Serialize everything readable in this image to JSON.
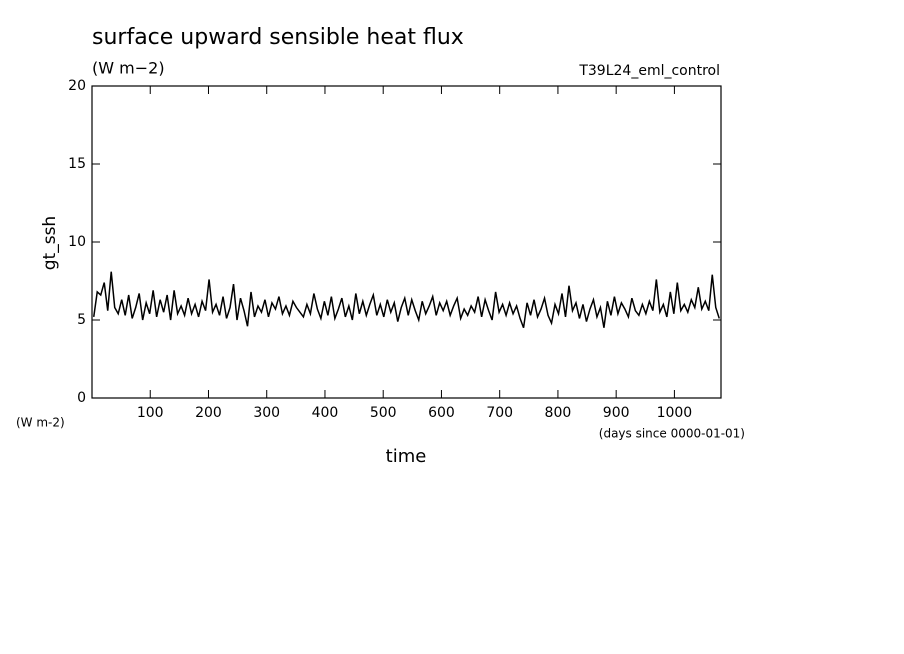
{
  "chart_data": {
    "type": "line",
    "title": "surface upward sensible heat flux",
    "subtitle": "(W m−2)",
    "annotation": "T39L24_eml_control",
    "y_label": "gt_ssh",
    "x_label": "time",
    "y_units": "(W m-2)",
    "x_units": "(days since 0000-01-01)",
    "xlim": [
      0,
      1080
    ],
    "ylim": [
      0,
      20
    ],
    "xticks": [
      100,
      200,
      300,
      400,
      500,
      600,
      700,
      800,
      900,
      1000
    ],
    "yticks": [
      0,
      5,
      10,
      15,
      20
    ],
    "grid": false,
    "x": [
      3,
      9,
      15,
      21,
      27,
      33,
      39,
      45,
      51,
      57,
      63,
      69,
      75,
      81,
      87,
      93,
      99,
      105,
      111,
      117,
      123,
      129,
      135,
      141,
      147,
      153,
      159,
      165,
      171,
      177,
      183,
      189,
      195,
      201,
      207,
      213,
      219,
      225,
      231,
      237,
      243,
      249,
      255,
      261,
      267,
      273,
      279,
      285,
      291,
      297,
      303,
      309,
      315,
      321,
      327,
      333,
      339,
      345,
      351,
      357,
      363,
      369,
      375,
      381,
      387,
      393,
      399,
      405,
      411,
      417,
      423,
      429,
      435,
      441,
      447,
      453,
      459,
      465,
      471,
      477,
      483,
      489,
      495,
      501,
      507,
      513,
      519,
      525,
      531,
      537,
      543,
      549,
      555,
      561,
      567,
      573,
      579,
      585,
      591,
      597,
      603,
      609,
      615,
      621,
      627,
      633,
      639,
      645,
      651,
      657,
      663,
      669,
      675,
      681,
      687,
      693,
      699,
      705,
      711,
      717,
      723,
      729,
      735,
      741,
      747,
      753,
      759,
      765,
      771,
      777,
      783,
      789,
      795,
      801,
      807,
      813,
      819,
      825,
      831,
      837,
      843,
      849,
      855,
      861,
      867,
      873,
      879,
      885,
      891,
      897,
      903,
      909,
      915,
      921,
      927,
      933,
      939,
      945,
      951,
      957,
      963,
      969,
      975,
      981,
      987,
      993,
      999,
      1005,
      1011,
      1017,
      1023,
      1029,
      1035,
      1041,
      1047,
      1053,
      1059,
      1065,
      1071,
      1077
    ],
    "series": [
      {
        "name": "gt_ssh",
        "color": "#000000",
        "values": [
          5.2,
          6.8,
          6.6,
          7.4,
          5.6,
          8.1,
          5.8,
          5.4,
          6.3,
          5.3,
          6.6,
          5.1,
          5.8,
          6.7,
          5.0,
          6.1,
          5.4,
          6.9,
          5.2,
          6.3,
          5.5,
          6.6,
          5.0,
          6.9,
          5.4,
          5.9,
          5.3,
          6.4,
          5.4,
          6.0,
          5.2,
          6.2,
          5.6,
          7.6,
          5.5,
          6.0,
          5.3,
          6.5,
          5.1,
          5.8,
          7.3,
          5.0,
          6.4,
          5.6,
          4.6,
          6.8,
          5.2,
          5.9,
          5.5,
          6.3,
          5.2,
          6.1,
          5.7,
          6.5,
          5.4,
          5.9,
          5.3,
          6.2,
          5.8,
          5.5,
          5.2,
          6.0,
          5.4,
          6.7,
          5.7,
          5.1,
          6.2,
          5.3,
          6.5,
          5.1,
          5.7,
          6.4,
          5.2,
          5.9,
          5.0,
          6.7,
          5.4,
          6.2,
          5.3,
          6.0,
          6.6,
          5.3,
          6.0,
          5.2,
          6.3,
          5.5,
          6.1,
          4.9,
          5.8,
          6.4,
          5.3,
          6.3,
          5.6,
          5.0,
          6.2,
          5.4,
          5.9,
          6.5,
          5.3,
          6.1,
          5.6,
          6.2,
          5.3,
          5.9,
          6.4,
          5.1,
          5.7,
          5.3,
          5.9,
          5.5,
          6.5,
          5.2,
          6.3,
          5.6,
          5.0,
          6.8,
          5.5,
          6.0,
          5.3,
          6.1,
          5.4,
          5.9,
          5.1,
          4.5,
          6.1,
          5.3,
          6.3,
          5.2,
          5.7,
          6.4,
          5.3,
          4.8,
          6.0,
          5.4,
          6.7,
          5.2,
          7.2,
          5.6,
          6.1,
          5.1,
          6.0,
          4.9,
          5.7,
          6.3,
          5.2,
          5.8,
          4.5,
          6.2,
          5.3,
          6.5,
          5.4,
          6.1,
          5.7,
          5.2,
          6.4,
          5.6,
          5.3,
          6.0,
          5.4,
          6.2,
          5.6,
          7.6,
          5.5,
          6.0,
          5.2,
          6.8,
          5.4,
          7.4,
          5.6,
          6.0,
          5.5,
          6.3,
          5.8,
          7.1,
          5.7,
          6.2,
          5.6,
          7.9,
          5.8,
          5.1
        ]
      }
    ]
  }
}
